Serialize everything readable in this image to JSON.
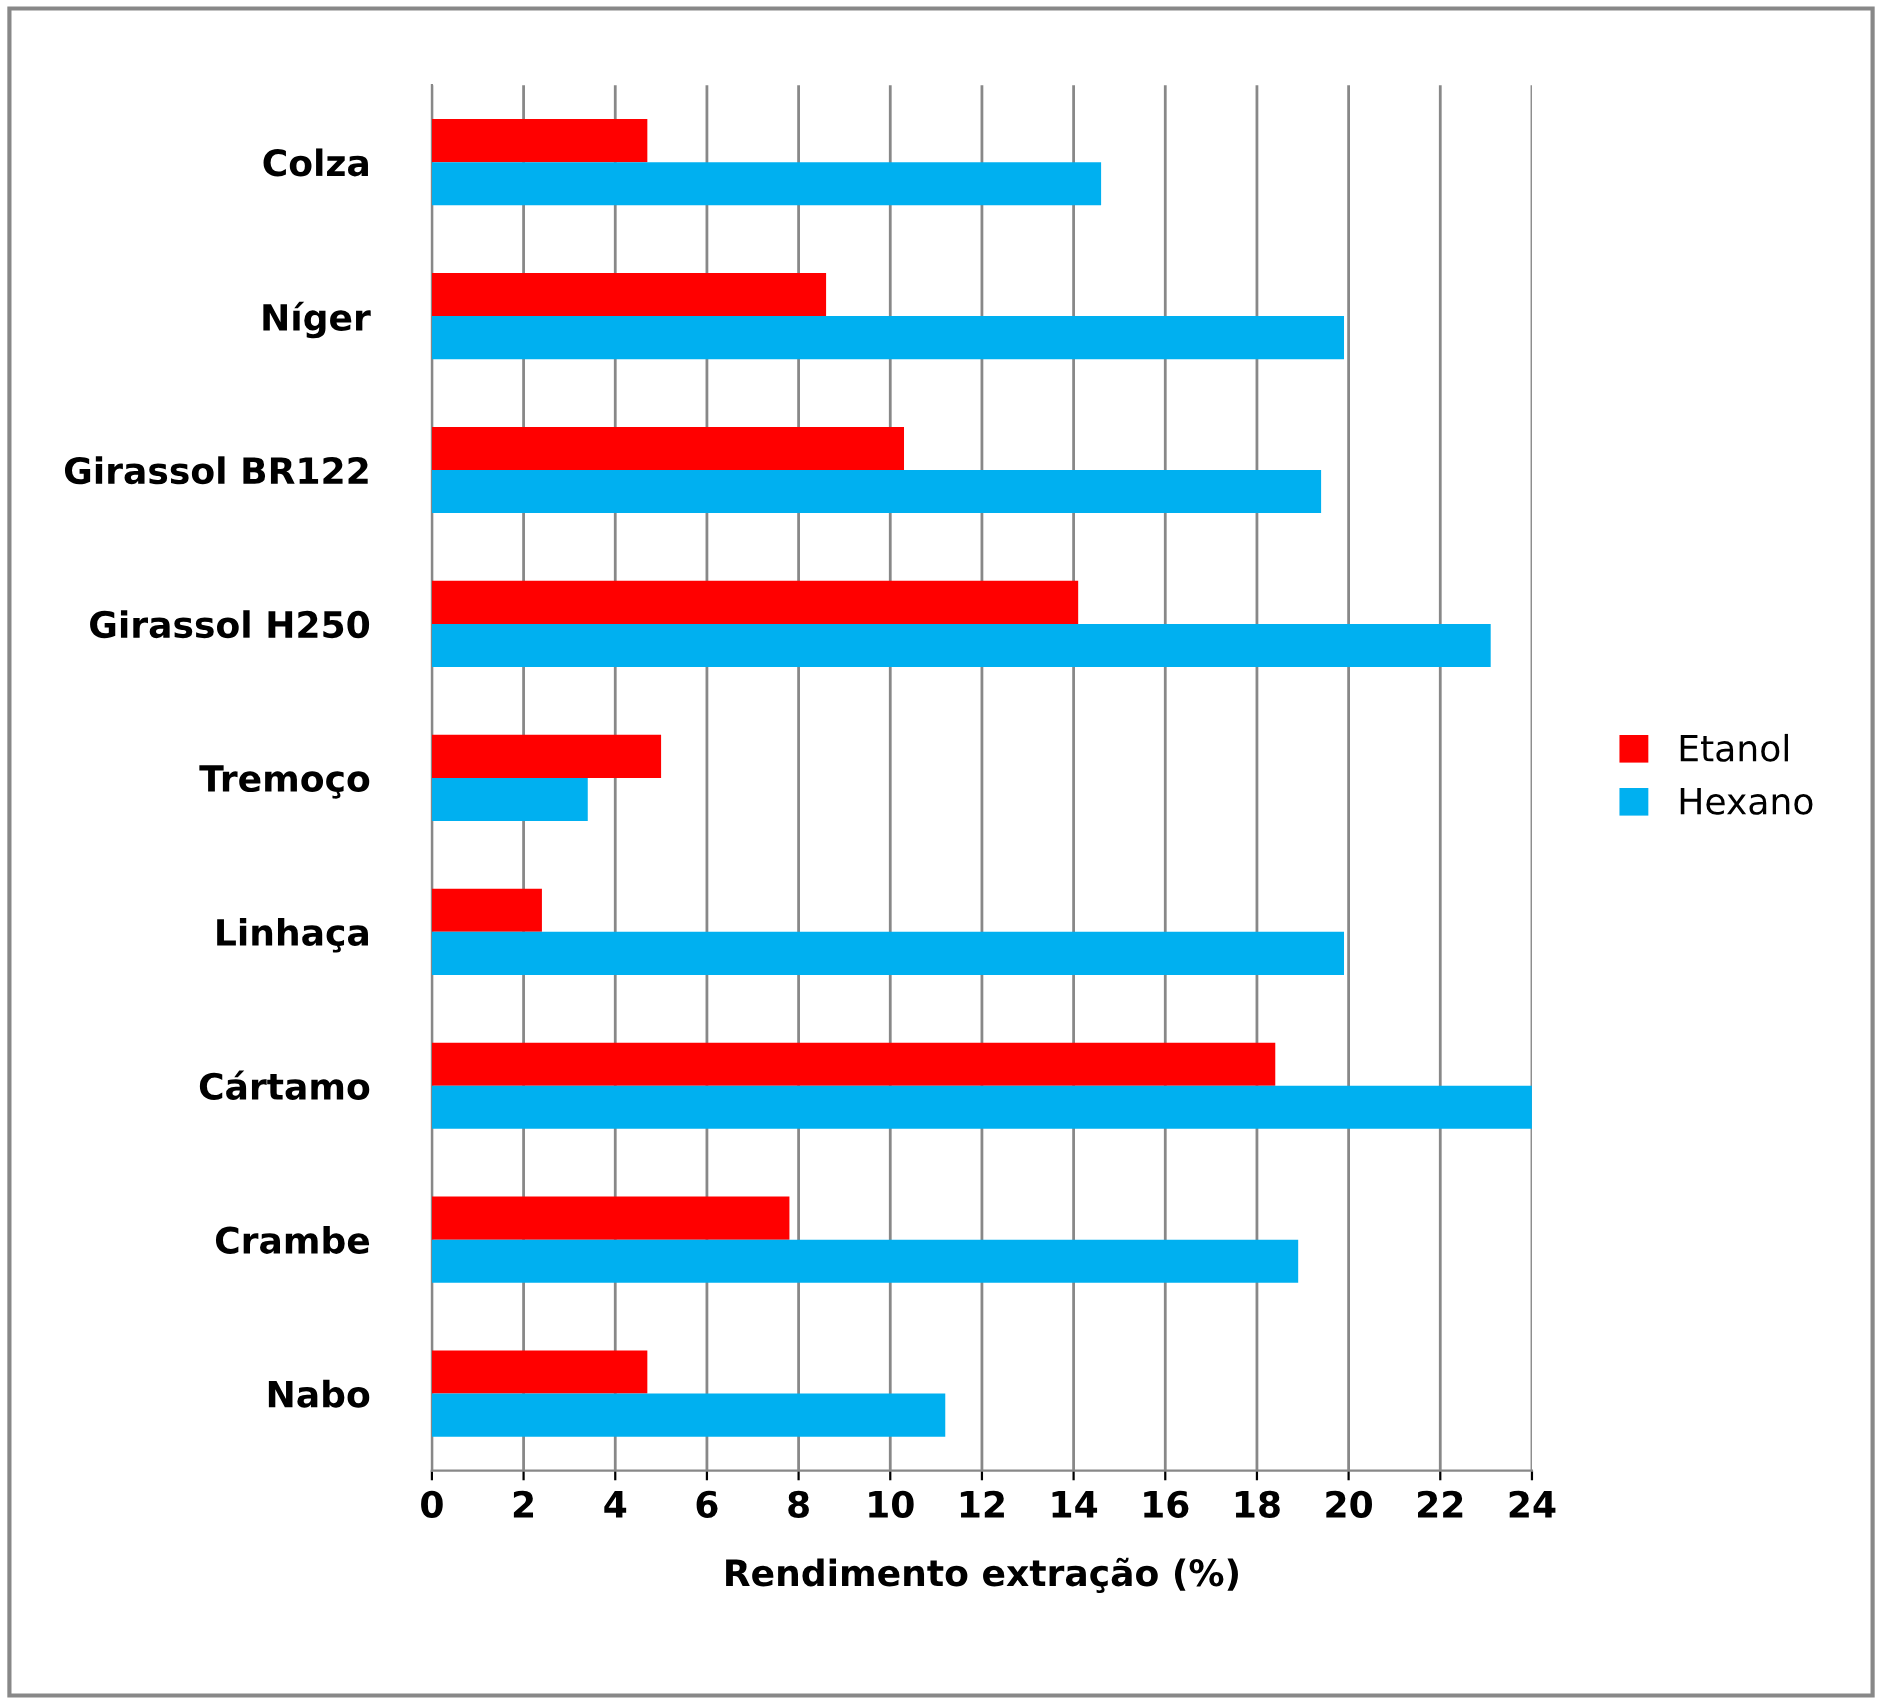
{
  "chart_data": {
    "type": "bar",
    "orientation": "horizontal",
    "xlabel": "Rendimento extração (%)",
    "categories": [
      "Colza",
      "Níger",
      "Girassol BR122",
      "Girassol H250",
      "Tremoço",
      "Linhaça",
      "Cártamo",
      "Crambe",
      "Nabo"
    ],
    "series": [
      {
        "name": "Etanol",
        "color": "#ff0000",
        "values": [
          4.7,
          8.6,
          10.3,
          14.1,
          5.0,
          2.4,
          18.4,
          7.8,
          4.7
        ]
      },
      {
        "name": "Hexano",
        "color": "#00b0f0",
        "values": [
          14.6,
          19.9,
          19.4,
          23.1,
          3.4,
          19.9,
          24.0,
          18.9,
          11.2
        ]
      }
    ],
    "xlim": [
      0,
      24
    ],
    "xticks": [
      0,
      2,
      4,
      6,
      8,
      10,
      12,
      14,
      16,
      18,
      20,
      22,
      24
    ],
    "grid": "x",
    "legend": "right"
  }
}
